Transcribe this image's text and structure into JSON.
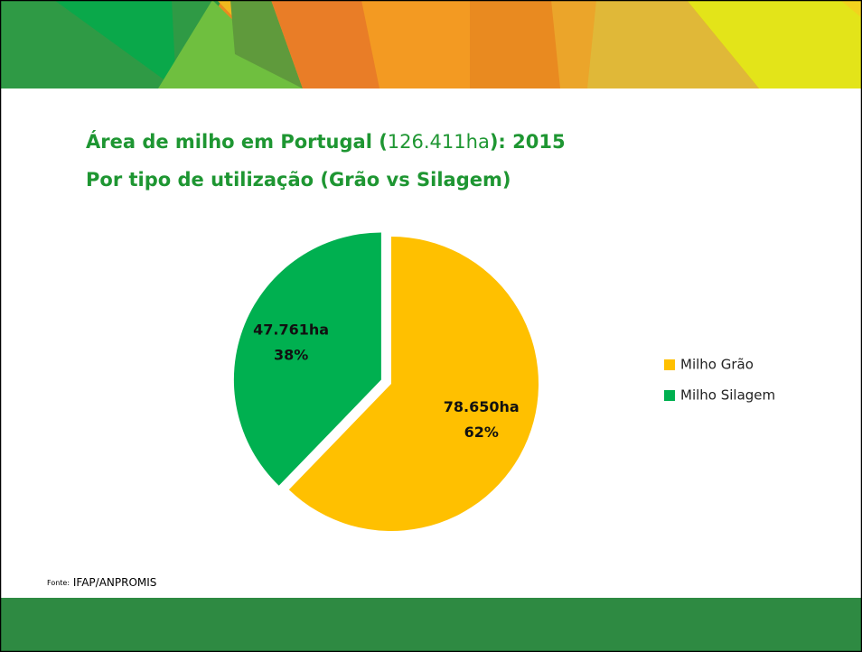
{
  "chart_data": {
    "type": "pie",
    "title_parts": [
      "Área de milho em Portugal (",
      "126.411ha",
      "): 2015"
    ],
    "subtitle": "Por tipo de utilização (Grão vs Silagem)",
    "categories": [
      "Milho Grão",
      "Milho Silagem"
    ],
    "values": [
      78650,
      47761
    ],
    "value_labels": [
      "78.650ha",
      "47.761ha"
    ],
    "percent_labels": [
      "62%",
      "38%"
    ],
    "colors": [
      "#FFC000",
      "#00B050"
    ],
    "legend": "right",
    "source_label": "Fonte:",
    "source": "IFAP/ANPROMIS"
  }
}
